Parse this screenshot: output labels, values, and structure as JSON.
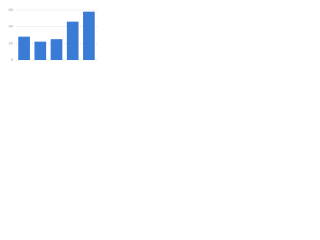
{
  "chart_data": {
    "type": "bar",
    "categories": [
      null,
      null,
      null,
      null,
      null
    ],
    "values": [
      28,
      22,
      25,
      46,
      58
    ],
    "color": "#3a7bd5",
    "ylim": [
      0,
      60
    ],
    "yticks": [
      0,
      20,
      40,
      60
    ],
    "grid": true
  }
}
